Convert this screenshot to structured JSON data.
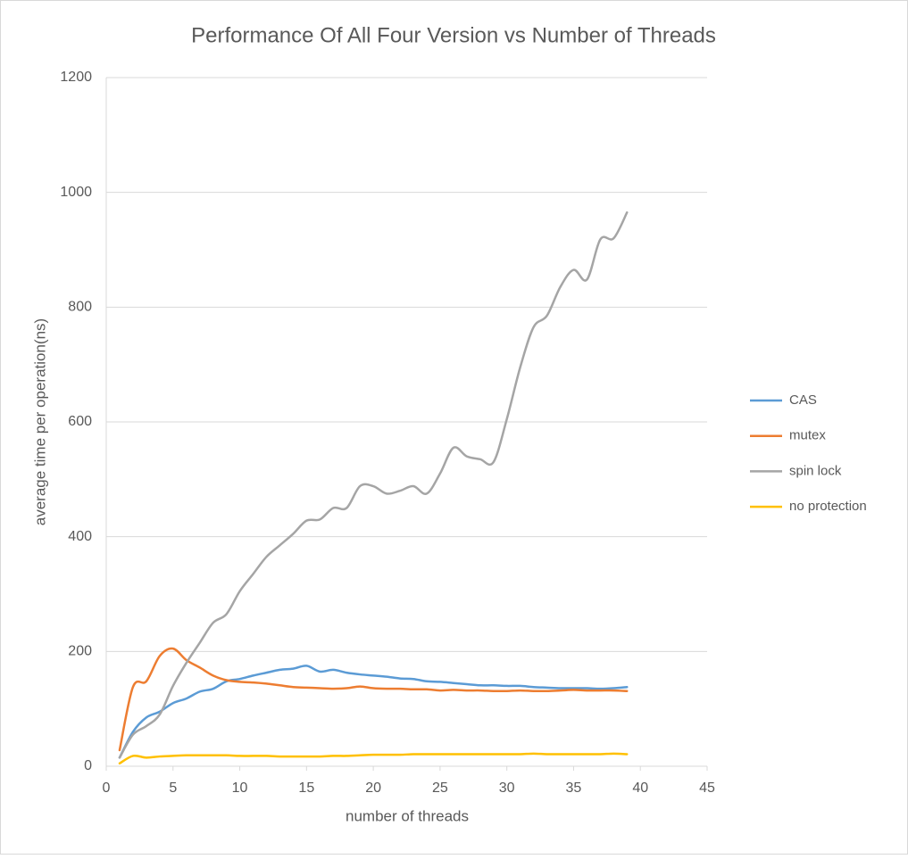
{
  "chart_data": {
    "type": "line",
    "title": "Performance  Of All Four Version vs Number of Threads",
    "x_label": "number of threads",
    "y_label": "average time per operation(ns)",
    "x": [
      1,
      2,
      3,
      4,
      5,
      6,
      7,
      8,
      9,
      10,
      11,
      12,
      13,
      14,
      15,
      16,
      17,
      18,
      19,
      20,
      21,
      22,
      23,
      24,
      25,
      26,
      27,
      28,
      29,
      30,
      31,
      32,
      33,
      34,
      35,
      36,
      37,
      38,
      39
    ],
    "series": [
      {
        "name": "CAS",
        "color": "#5b9bd5",
        "values": [
          15,
          60,
          85,
          95,
          110,
          118,
          130,
          135,
          148,
          152,
          158,
          163,
          168,
          170,
          175,
          165,
          168,
          163,
          160,
          158,
          156,
          153,
          152,
          148,
          147,
          145,
          143,
          141,
          141,
          140,
          140,
          138,
          137,
          136,
          136,
          136,
          135,
          136,
          138
        ]
      },
      {
        "name": "mutex",
        "color": "#ed7d31",
        "values": [
          28,
          138,
          148,
          192,
          205,
          185,
          172,
          158,
          150,
          147,
          146,
          144,
          141,
          138,
          137,
          136,
          135,
          136,
          139,
          136,
          135,
          135,
          134,
          134,
          132,
          133,
          132,
          132,
          131,
          131,
          132,
          131,
          131,
          132,
          133,
          132,
          132,
          132,
          131
        ]
      },
      {
        "name": "spin lock",
        "color": "#a5a5a5",
        "values": [
          15,
          55,
          70,
          90,
          140,
          180,
          215,
          250,
          265,
          305,
          335,
          365,
          385,
          405,
          428,
          430,
          450,
          450,
          488,
          488,
          475,
          480,
          488,
          475,
          510,
          555,
          540,
          535,
          530,
          605,
          695,
          765,
          785,
          835,
          865,
          848,
          918,
          920,
          965
        ]
      },
      {
        "name": "no protection",
        "color": "#ffc000",
        "values": [
          5,
          18,
          15,
          17,
          18,
          19,
          19,
          19,
          19,
          18,
          18,
          18,
          17,
          17,
          17,
          17,
          18,
          18,
          19,
          20,
          20,
          20,
          21,
          21,
          21,
          21,
          21,
          21,
          21,
          21,
          21,
          22,
          21,
          21,
          21,
          21,
          21,
          22,
          21
        ]
      }
    ],
    "xlim": [
      0,
      45
    ],
    "xticks": [
      0,
      5,
      10,
      15,
      20,
      25,
      30,
      35,
      40,
      45
    ],
    "ylim": [
      0,
      1200
    ],
    "yticks": [
      0,
      200,
      400,
      600,
      800,
      1000,
      1200
    ],
    "grid": true,
    "legend": "right"
  }
}
